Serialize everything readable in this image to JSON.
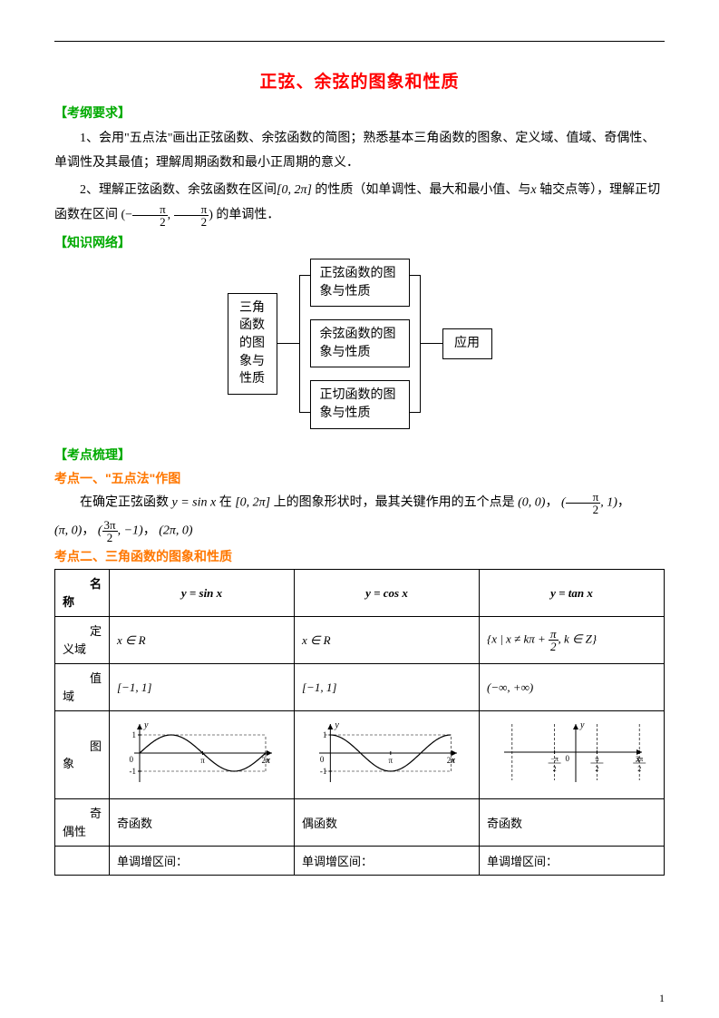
{
  "title": "正弦、余弦的图象和性质",
  "sections": {
    "s1": "【考纲要求】",
    "s2": "【知识网络】",
    "s3": "【考点梳理】"
  },
  "para1": "1、会用\"五点法\"画出正弦函数、余弦函数的简图；熟悉基本三角函数的图象、定义域、值域、奇偶性、单调性及其最值；理解周期函数和最小正周期的意义．",
  "para2a": "2、理解正弦函数、余弦函数在区间",
  "para2b": "[0, 2π]",
  "para2c": "的性质（如单调性、最大和最小值、与",
  "para2d": "x",
  "para2e": "轴交点等），理解正切函数在区间",
  "para2f": "的单调性．",
  "interval_open": "(−",
  "interval_mid": ", ",
  "interval_close": ")",
  "pi_over_2_n": "π",
  "pi_over_2_d": "2",
  "network": {
    "left": "三角函数的图象与性质",
    "mid1": "正弦函数的图象与性质",
    "mid2": "余弦函数的图象与性质",
    "mid3": "正切函数的图象与性质",
    "right": "应用"
  },
  "kp1_title": "考点一、\"五点法\"作图",
  "kp1_a": "在确定正弦函数",
  "kp1_b": "y = sin x",
  "kp1_c": "在",
  "kp1_d": "[0, 2π]",
  "kp1_e": "上的图象形状时，最其关键作用的五个点是",
  "kp1_pts_a": "(0, 0)",
  "kp1_pts_sep": "，",
  "kp1_pts_b1": "(",
  "kp1_pts_b2": ", 1)",
  "kp1_pts_c": "(π, 0)",
  "kp1_pts_d1": "(",
  "kp1_pts_d2": ", −1)",
  "kp1_pts_e": "(2π, 0)",
  "three_pi_2_n": "3π",
  "three_pi_2_d": "2",
  "kp2_title": "考点二、三角函数的图象和性质",
  "table": {
    "headers": {
      "c0a": "名",
      "c0b": "称",
      "c1": "y = sin x",
      "c2": "y = cos x",
      "c3": "y = tan x"
    },
    "rows": {
      "domain_la": "定",
      "domain_lb": "义域",
      "domain1": "x ∈ R",
      "domain2": "x ∈ R",
      "domain3a": "{x | x ≠ kπ + ",
      "domain3b": ", k ∈ Z}",
      "range_la": "值",
      "range_lb": "域",
      "range1": "[−1, 1]",
      "range2": "[−1, 1]",
      "range3": "(−∞, +∞)",
      "graph_la": "图",
      "graph_lb": "象",
      "parity_la": "奇",
      "parity_lb": "偶性",
      "parity1": "奇函数",
      "parity2": "偶函数",
      "parity3": "奇函数",
      "mono1": "单调增区间：",
      "mono2": "单调增区间：",
      "mono3": "单调增区间："
    }
  },
  "colors": {
    "title": "#ff0000",
    "section": "#00aa00",
    "sub": "#ff7700",
    "text": "#000000",
    "border": "#000000"
  },
  "charts": {
    "sin": {
      "type": "line",
      "xlim": [
        0,
        6.6
      ],
      "ylim": [
        -1.5,
        1.6
      ],
      "xticks": [
        {
          "v": 3.14159,
          "l": "π"
        },
        {
          "v": 6.28318,
          "l": "2π"
        }
      ],
      "yticks": [
        {
          "v": 1,
          "l": "1"
        },
        {
          "v": -1,
          "l": "-1"
        }
      ],
      "line_color": "#000000",
      "line_width": 1.2,
      "axis_color": "#000000",
      "dash_color": "#000000",
      "series": "sin"
    },
    "cos": {
      "type": "line",
      "xlim": [
        -0.3,
        6.6
      ],
      "ylim": [
        -1.5,
        1.6
      ],
      "xticks": [
        {
          "v": 3.14159,
          "l": "π"
        },
        {
          "v": 6.28318,
          "l": "2π"
        }
      ],
      "yticks": [
        {
          "v": 1,
          "l": "1"
        },
        {
          "v": -1,
          "l": "-1"
        }
      ],
      "line_color": "#000000",
      "line_width": 1.2,
      "axis_color": "#000000",
      "series": "cos"
    },
    "tan": {
      "type": "line",
      "xlim": [
        -4.9,
        4.9
      ],
      "ylim": [
        -2.5,
        2.5
      ],
      "asymptotes": [
        -4.712,
        -1.5708,
        1.5708,
        4.712
      ],
      "xticks": [
        {
          "v": -1.5708,
          "l": "π\n− —\n 2"
        },
        {
          "v": 1.5708,
          "l": "π\n—\n2"
        },
        {
          "v": 4.712,
          "l": "3π\n—\n2"
        }
      ],
      "line_color": "#000000",
      "line_width": 1.2,
      "axis_color": "#000000",
      "series": "tan"
    }
  },
  "pagenum": "1"
}
